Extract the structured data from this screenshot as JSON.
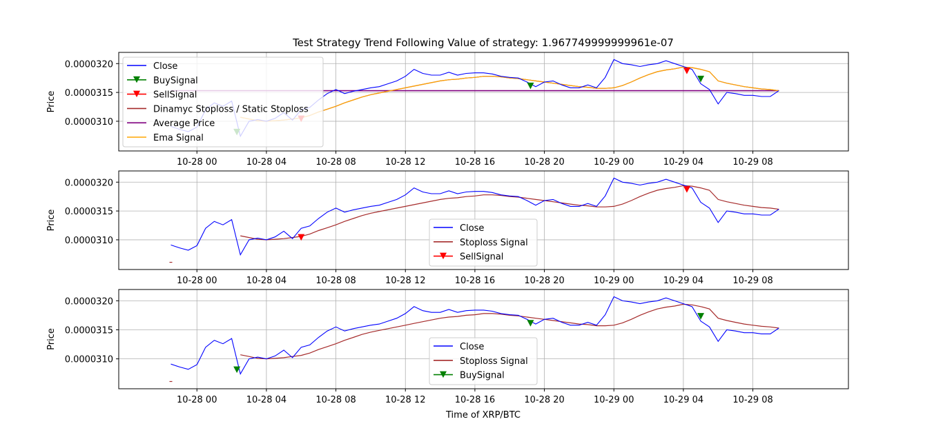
{
  "chart_data": {
    "title": "Test Strategy Trend Following  Value of strategy: 1.967749999999961e-07",
    "xlabel": "Time of XRP/BTC",
    "ylabel": "Price",
    "x_tick_labels": [
      "10-28 00",
      "10-28 04",
      "10-28 08",
      "10-28 12",
      "10-28 16",
      "10-28 20",
      "10-29 00",
      "10-29 04",
      "10-29 08"
    ],
    "x_range_hours": [
      -4.5,
      37.5
    ],
    "x_tick_hours": [
      0,
      4,
      8,
      12,
      16,
      20,
      24,
      28,
      32
    ],
    "y_tick_labels": [
      "0.0000320",
      "0.0000315",
      "0.0000310"
    ],
    "y_ticks": [
      3.2e-05,
      3.15e-05,
      3.1e-05
    ],
    "grid": true,
    "close_hours": [
      -1.5,
      -1.0,
      -0.5,
      0.0,
      0.5,
      1.0,
      1.5,
      2.0,
      2.5,
      3.0,
      3.5,
      4.0,
      4.5,
      5.0,
      5.5,
      6.0,
      6.5,
      7.0,
      7.5,
      8.0,
      8.5,
      9.0,
      9.5,
      10.0,
      10.5,
      11.0,
      11.5,
      12.0,
      12.5,
      13.0,
      13.5,
      14.0,
      14.5,
      15.0,
      15.5,
      16.0,
      16.5,
      17.0,
      17.5,
      18.0,
      18.5,
      19.0,
      19.5,
      20.0,
      20.5,
      21.0,
      21.5,
      22.0,
      22.5,
      23.0,
      23.5,
      24.0,
      24.5,
      25.0,
      25.5,
      26.0,
      26.5,
      27.0,
      27.5,
      28.0,
      28.5,
      29.0,
      29.5,
      30.0,
      30.5,
      31.0,
      31.5,
      32.0,
      32.5,
      33.0,
      33.5
    ],
    "close_values": [
      3.091e-05,
      3.086e-05,
      3.082e-05,
      3.09e-05,
      3.12e-05,
      3.132e-05,
      3.126e-05,
      3.135e-05,
      3.074e-05,
      3.1e-05,
      3.103e-05,
      3.1e-05,
      3.105e-05,
      3.115e-05,
      3.102e-05,
      3.12e-05,
      3.124e-05,
      3.137e-05,
      3.148e-05,
      3.155e-05,
      3.148e-05,
      3.152e-05,
      3.155e-05,
      3.158e-05,
      3.16e-05,
      3.165e-05,
      3.17e-05,
      3.178e-05,
      3.19e-05,
      3.183e-05,
      3.18e-05,
      3.18e-05,
      3.185e-05,
      3.18e-05,
      3.183e-05,
      3.184e-05,
      3.184e-05,
      3.182e-05,
      3.178e-05,
      3.176e-05,
      3.175e-05,
      3.168e-05,
      3.16e-05,
      3.168e-05,
      3.17e-05,
      3.163e-05,
      3.158e-05,
      3.158e-05,
      3.163e-05,
      3.158e-05,
      3.176e-05,
      3.207e-05,
      3.2e-05,
      3.198e-05,
      3.195e-05,
      3.198e-05,
      3.2e-05,
      3.205e-05,
      3.2e-05,
      3.195e-05,
      3.19e-05,
      3.165e-05,
      3.155e-05,
      3.13e-05,
      3.15e-05,
      3.148e-05,
      3.145e-05,
      3.145e-05,
      3.143e-05,
      3.143e-05,
      3.153e-05
    ],
    "stoploss_hours": [
      2.5,
      3.0,
      3.5,
      4.0,
      4.5,
      5.0,
      5.5,
      6.0,
      6.5,
      7.0,
      7.5,
      8.0,
      8.5,
      9.0,
      9.5,
      10.0,
      10.5,
      11.0,
      11.5,
      12.0,
      12.5,
      13.0,
      13.5,
      14.0,
      14.5,
      15.0,
      15.5,
      16.0,
      16.5,
      17.0,
      17.5,
      18.0,
      18.5,
      19.0,
      19.5,
      20.0,
      20.5,
      21.0,
      21.5,
      22.0,
      22.5,
      23.0,
      23.5,
      24.0,
      24.5,
      25.0,
      25.5,
      26.0,
      26.5,
      27.0,
      27.5,
      28.0,
      28.5,
      29.0,
      29.5,
      30.0,
      30.5,
      31.0,
      31.5,
      32.0,
      32.5,
      33.0,
      33.5
    ],
    "stoploss_values": [
      3.107e-05,
      3.104e-05,
      3.101e-05,
      3.1e-05,
      3.101e-05,
      3.102e-05,
      3.104e-05,
      3.106e-05,
      3.11e-05,
      3.116e-05,
      3.121e-05,
      3.126e-05,
      3.132e-05,
      3.137e-05,
      3.142e-05,
      3.146e-05,
      3.149e-05,
      3.152e-05,
      3.155e-05,
      3.158e-05,
      3.161e-05,
      3.164e-05,
      3.167e-05,
      3.17e-05,
      3.172e-05,
      3.173e-05,
      3.175e-05,
      3.176e-05,
      3.178e-05,
      3.178e-05,
      3.177e-05,
      3.175e-05,
      3.174e-05,
      3.172e-05,
      3.17e-05,
      3.168e-05,
      3.166e-05,
      3.164e-05,
      3.162e-05,
      3.16e-05,
      3.159e-05,
      3.157e-05,
      3.157e-05,
      3.158e-05,
      3.162e-05,
      3.168e-05,
      3.175e-05,
      3.181e-05,
      3.186e-05,
      3.189e-05,
      3.191e-05,
      3.194e-05,
      3.193e-05,
      3.19e-05,
      3.186e-05,
      3.17e-05,
      3.166e-05,
      3.163e-05,
      3.16e-05,
      3.158e-05,
      3.156e-05,
      3.155e-05,
      3.153e-05
    ],
    "average_price": 3.153e-05,
    "short_dash": {
      "hour": -1.5,
      "value": 3.061e-05
    },
    "buy_signals": [
      {
        "hour": 2.3,
        "value": 3.081e-05
      },
      {
        "hour": 19.2,
        "value": 3.161e-05
      },
      {
        "hour": 29.0,
        "value": 3.173e-05
      }
    ],
    "sell_signals": [
      {
        "hour": 6.0,
        "value": 3.104e-05
      },
      {
        "hour": 28.2,
        "value": 3.187e-05
      }
    ],
    "colors": {
      "close": "#0000ff",
      "stoploss": "#a52a2a",
      "average": "#800080",
      "ema": "#ffa500",
      "buy": "#008000",
      "sell": "#ff0000",
      "grid": "#b0b0b0"
    },
    "panels": [
      {
        "legend_position": "upper-left",
        "legend": [
          {
            "label": "Close",
            "color": "#0000ff",
            "marker": "none"
          },
          {
            "label": "BuySignal",
            "color": "#008000",
            "marker": "triangle-down"
          },
          {
            "label": "SellSignal",
            "color": "#ff0000",
            "marker": "triangle-down"
          },
          {
            "label": "Dinamyc Stoploss / Static Stoploss",
            "color": "#a52a2a",
            "marker": "none"
          },
          {
            "label": "Average Price",
            "color": "#800080",
            "marker": "none"
          },
          {
            "label": "Ema Signal",
            "color": "#ffa500",
            "marker": "none"
          }
        ]
      },
      {
        "legend_position": "lower-center",
        "legend": [
          {
            "label": "Close",
            "color": "#0000ff",
            "marker": "none"
          },
          {
            "label": "Stoploss Signal",
            "color": "#a52a2a",
            "marker": "none"
          },
          {
            "label": "SellSignal",
            "color": "#ff0000",
            "marker": "triangle-down"
          }
        ]
      },
      {
        "legend_position": "lower-center",
        "legend": [
          {
            "label": "Close",
            "color": "#0000ff",
            "marker": "none"
          },
          {
            "label": "Stoploss Signal",
            "color": "#a52a2a",
            "marker": "none"
          },
          {
            "label": "BuySignal",
            "color": "#008000",
            "marker": "triangle-down"
          }
        ]
      }
    ]
  }
}
